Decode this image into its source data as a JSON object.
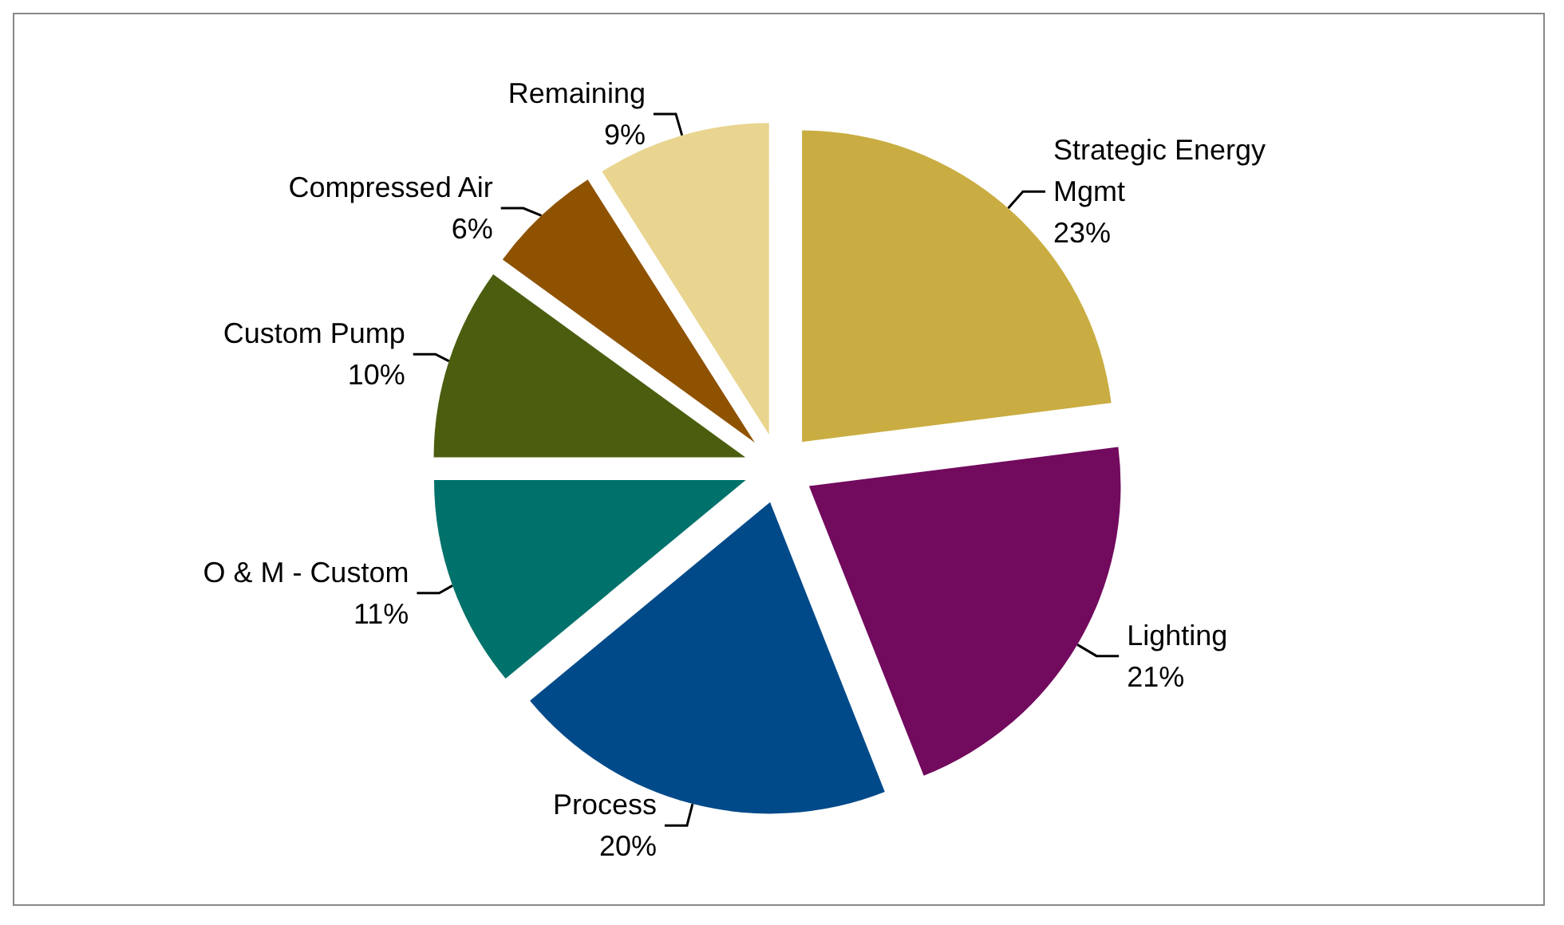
{
  "chart_data": {
    "type": "pie",
    "categories": [
      "Strategic Energy Mgmt",
      "Lighting",
      "Process",
      "O & M - Custom",
      "Custom Pump",
      "Compressed Air",
      "Remaining"
    ],
    "values": [
      23,
      21,
      20,
      11,
      10,
      6,
      9
    ],
    "colors": [
      "#c9ad42",
      "#720a5e",
      "#004a8a",
      "#00726b",
      "#4b5e0f",
      "#8f5200",
      "#e9d590"
    ],
    "value_labels": [
      "23%",
      "21%",
      "20%",
      "11%",
      "10%",
      "6%",
      "9%"
    ],
    "legend": false
  }
}
